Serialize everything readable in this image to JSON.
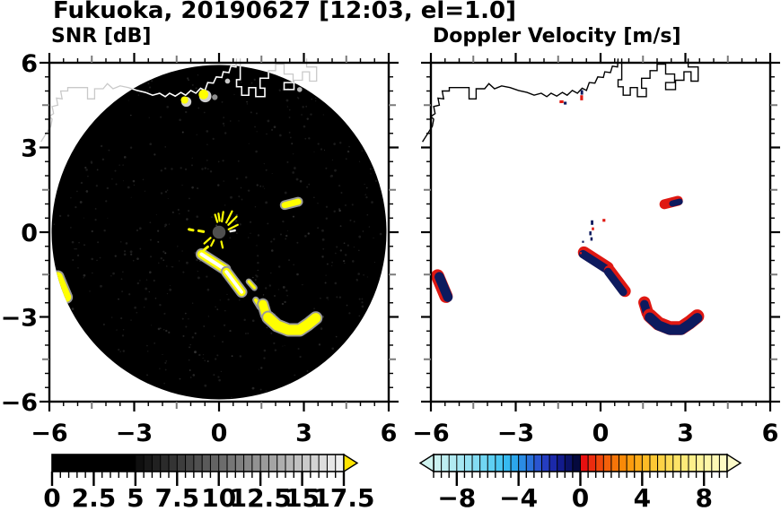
{
  "header": {
    "main_title": "Fukuoka, 20190627 [12:03, el=1.0]",
    "left_panel_title": "SNR [dB]",
    "right_panel_title": "Doppler Velocity [m/s]"
  },
  "colors": {
    "snr_echo": "#ffff00",
    "snr_halo": "#9a9a9a",
    "snr_core": "#ffffff",
    "vel_pos": "#df1812",
    "vel_neg": "#0d1a5e",
    "disk": "#000000",
    "coast_inside_disk": "#ffffff",
    "coast_outside_disk": "#c9c9c9",
    "coast_velocity_panel": "#000000",
    "center_dot": "#4f4f4f",
    "frame": "#000000",
    "medium_tick": "#7a7a7a",
    "snr_over_arrow": "#ffe400"
  },
  "chart_data": {
    "type": "heatmap",
    "title": "Fukuoka, 20190627 [12:03, el=1.0]",
    "panels": [
      {
        "name": "SNR [dB]",
        "kind": "snr",
        "xlim": [
          -6,
          6
        ],
        "ylim": [
          -6,
          6
        ],
        "xtick_values": [
          -6,
          -3,
          0,
          3,
          6
        ],
        "ytick_values": [
          -6,
          -3,
          0,
          3,
          6
        ],
        "xtick_labels": [
          "−6",
          "−3",
          "0",
          "3",
          "6"
        ],
        "ytick_labels": [
          "−6",
          "−3",
          "0",
          "3",
          "6"
        ],
        "minor_tick_step": 0.5,
        "medium_tick_step": 1.5,
        "disk_radius": 5.92,
        "colorbar": {
          "min": 0,
          "max": 17.5,
          "cell": 0.5,
          "black_until": 5,
          "major_values": [
            0,
            2.5,
            5,
            7.5,
            10,
            12.5,
            15,
            17.5
          ],
          "labels": [
            "0",
            "2.5",
            "5",
            "7.5",
            "10",
            "12.5",
            "15",
            "17.5"
          ],
          "arrow_left": false,
          "arrow_right": true
        }
      },
      {
        "name": "Doppler Velocity [m/s]",
        "kind": "vel",
        "xlim": [
          -6,
          6
        ],
        "ylim": [
          -6,
          6
        ],
        "xtick_values": [
          -6,
          -3,
          0,
          3,
          6
        ],
        "ytick_values": [
          -6,
          -3,
          0,
          3,
          6
        ],
        "xtick_labels": [
          "−6",
          "−3",
          "0",
          "3",
          "6"
        ],
        "ytick_labels": [],
        "minor_tick_step": 0.5,
        "medium_tick_step": 1.5,
        "colorbar": {
          "min": -9.5,
          "max": 9.5,
          "cell": 0.5,
          "major_values": [
            -8,
            -4,
            0,
            4,
            8
          ],
          "labels": [
            "−8",
            "−4",
            "0",
            "4",
            "8"
          ],
          "arrow_left": true,
          "arrow_right": true
        }
      }
    ],
    "snr_cmap": {
      "start": 5,
      "end": 17.5,
      "low_rgb": [
        10,
        10,
        10
      ],
      "high_rgb": [
        244,
        244,
        244
      ]
    },
    "vel_cmap": {
      "neg_stops": [
        [
          -9.5,
          [
            207,
            243,
            240
          ]
        ],
        [
          -7.5,
          [
            159,
            229,
            243
          ]
        ],
        [
          -5.5,
          [
            85,
            205,
            243
          ]
        ],
        [
          -4.5,
          [
            44,
            180,
            240
          ]
        ],
        [
          -3.5,
          [
            42,
            127,
            224
          ]
        ],
        [
          -2.5,
          [
            42,
            71,
            204
          ]
        ],
        [
          -1.5,
          [
            22,
            31,
            158
          ]
        ],
        [
          -0.5,
          [
            7,
            14,
            86
          ]
        ],
        [
          -0.25,
          [
            5,
            9,
            62
          ]
        ]
      ],
      "pos_stops": [
        [
          0.25,
          [
            232,
            16,
            16
          ]
        ],
        [
          1.5,
          [
            241,
            85,
            10
          ]
        ],
        [
          3,
          [
            250,
            148,
            8
          ]
        ],
        [
          4.5,
          [
            253,
            195,
            44
          ]
        ],
        [
          6,
          [
            253,
            224,
            94
          ]
        ],
        [
          7.5,
          [
            253,
            243,
            148
          ]
        ],
        [
          9.5,
          [
            253,
            251,
            201
          ]
        ]
      ]
    },
    "coastline": {
      "mainland": [
        [
          -6.3,
          3.2
        ],
        [
          -5.95,
          3.75
        ],
        [
          -5.9,
          4.0
        ],
        [
          -6.0,
          4.1
        ],
        [
          -5.85,
          4.2
        ],
        [
          -5.9,
          4.45
        ],
        [
          -5.7,
          4.5
        ],
        [
          -5.75,
          4.75
        ],
        [
          -5.55,
          4.72
        ],
        [
          -5.6,
          5.0
        ],
        [
          -5.35,
          5.0
        ],
        [
          -5.35,
          5.12
        ],
        [
          -4.65,
          5.12
        ],
        [
          -4.65,
          4.72
        ],
        [
          -4.4,
          4.72
        ],
        [
          -4.4,
          5.08
        ],
        [
          -4.1,
          5.08
        ],
        [
          -3.95,
          5.26
        ],
        [
          -3.75,
          5.08
        ],
        [
          -3.5,
          5.18
        ],
        [
          -3.2,
          5.12
        ],
        [
          -2.9,
          5.02
        ],
        [
          -2.6,
          4.95
        ],
        [
          -2.35,
          4.85
        ],
        [
          -2.1,
          4.92
        ],
        [
          -1.9,
          4.8
        ],
        [
          -1.75,
          4.92
        ],
        [
          -1.55,
          4.82
        ],
        [
          -1.35,
          4.95
        ],
        [
          -1.18,
          4.85
        ],
        [
          -1.0,
          5.02
        ],
        [
          -0.82,
          4.92
        ],
        [
          -0.65,
          5.1
        ],
        [
          -0.5,
          5.02
        ],
        [
          -0.4,
          5.3
        ],
        [
          -0.2,
          5.28
        ],
        [
          -0.1,
          5.5
        ],
        [
          0.1,
          5.48
        ],
        [
          0.15,
          5.68
        ],
        [
          0.35,
          5.65
        ],
        [
          0.42,
          5.88
        ],
        [
          0.6,
          5.85
        ],
        [
          0.62,
          6.15
        ]
      ],
      "harbor": [
        [
          0.75,
          6.15
        ],
        [
          0.75,
          5.4
        ],
        [
          0.62,
          5.4
        ],
        [
          0.62,
          5.15
        ],
        [
          0.8,
          5.15
        ],
        [
          0.8,
          4.85
        ],
        [
          1.05,
          4.85
        ],
        [
          1.05,
          5.12
        ],
        [
          1.3,
          5.12
        ],
        [
          1.3,
          4.8
        ],
        [
          1.62,
          4.8
        ],
        [
          1.62,
          5.1
        ],
        [
          1.45,
          5.1
        ],
        [
          1.45,
          5.45
        ],
        [
          1.75,
          5.45
        ],
        [
          1.75,
          5.72
        ],
        [
          2.0,
          5.72
        ],
        [
          2.0,
          5.95
        ],
        [
          2.3,
          5.95
        ],
        [
          2.3,
          5.6
        ],
        [
          2.62,
          5.6
        ],
        [
          2.62,
          5.3
        ],
        [
          2.3,
          5.3
        ],
        [
          2.3,
          5.05
        ],
        [
          2.65,
          5.05
        ],
        [
          2.65,
          5.38
        ],
        [
          2.95,
          5.38
        ],
        [
          2.95,
          5.68
        ],
        [
          3.2,
          5.68
        ],
        [
          3.2,
          5.35
        ],
        [
          3.45,
          5.35
        ],
        [
          3.45,
          5.85
        ],
        [
          3.1,
          5.85
        ],
        [
          3.1,
          6.15
        ]
      ]
    },
    "echoes": {
      "bands": [
        {
          "id": "arc-seg-1",
          "pts": [
            [
              -0.62,
              -0.78
            ],
            [
              0.22,
              -1.32
            ]
          ],
          "w": 0.3,
          "white_core": true,
          "vel_offset": [
            1,
            -2
          ]
        },
        {
          "id": "arc-seg-2",
          "pts": [
            [
              0.26,
              -1.4
            ],
            [
              0.8,
              -2.12
            ]
          ],
          "w": 0.28,
          "white_core": true,
          "vel_offset": [
            2,
            -1
          ]
        },
        {
          "id": "arc-dash-1",
          "pts": [
            [
              1.05,
              -1.75
            ],
            [
              1.25,
              -1.97
            ]
          ],
          "w": 0.1,
          "snr_only": true
        },
        {
          "id": "arc-dash-2",
          "pts": [
            [
              1.3,
              -2.4
            ],
            [
              1.45,
              -2.65
            ]
          ],
          "w": 0.12,
          "snr_only": true
        },
        {
          "id": "arc-hook",
          "pts": [
            [
              1.55,
              -2.55
            ],
            [
              1.66,
              -2.92
            ]
          ],
          "w": 0.3,
          "vel_offset": [
            0,
            -2
          ]
        },
        {
          "id": "arc-bottom",
          "pts": [
            [
              1.74,
              -3.02
            ],
            [
              2.05,
              -3.3
            ],
            [
              2.45,
              -3.46
            ],
            [
              2.85,
              -3.46
            ],
            [
              3.15,
              -3.26
            ],
            [
              3.42,
              -3.04
            ]
          ],
          "w": 0.36,
          "vel_offset": [
            0,
            -2
          ]
        },
        {
          "id": "west-edge-band",
          "pts": [
            [
              -5.7,
              -1.58
            ],
            [
              -5.4,
              -2.3
            ]
          ],
          "w": 0.34,
          "vel_offset": [
            -2,
            -1
          ]
        },
        {
          "id": "mid-blob",
          "pts": [
            [
              2.32,
              0.96
            ],
            [
              2.8,
              1.08
            ]
          ],
          "w": 0.22,
          "white_core": false,
          "vel_offset": [
            -2,
            -1
          ],
          "vel_red_first_half": true
        }
      ],
      "snr_coast_dots": [
        {
          "x": -1.22,
          "y": 4.68,
          "r": 0.13,
          "color": "#ffff00",
          "halo": true
        },
        {
          "x": -0.55,
          "y": 4.88,
          "r": 0.17,
          "color": "#ffff00",
          "halo": true
        },
        {
          "x": -0.15,
          "y": 4.78,
          "r": 0.1,
          "color": "#8f8f8f"
        },
        {
          "x": 0.3,
          "y": 5.35,
          "r": 0.09,
          "color": "#c8c8c8"
        },
        {
          "x": 2.85,
          "y": 5.05,
          "r": 0.09,
          "color": "#b5b5b5"
        }
      ],
      "vel_coast_marks": [
        {
          "x": -1.38,
          "y": 4.62,
          "w": 0.14,
          "h": 0.1,
          "c": "pos"
        },
        {
          "x": -1.25,
          "y": 4.57,
          "w": 0.1,
          "h": 0.1,
          "c": "neg"
        },
        {
          "x": -0.66,
          "y": 4.95,
          "w": 0.09,
          "h": 0.16,
          "c": "neg"
        },
        {
          "x": -0.67,
          "y": 4.76,
          "w": 0.1,
          "h": 0.18,
          "c": "pos"
        }
      ],
      "vel_center_specks": [
        {
          "x": -0.3,
          "y": 0.34,
          "w": 0.09,
          "h": 0.16,
          "c": "neg"
        },
        {
          "x": -0.27,
          "y": 0.12,
          "w": 0.08,
          "h": 0.1,
          "c": "pos"
        },
        {
          "x": 0.12,
          "y": 0.42,
          "w": 0.1,
          "h": 0.1,
          "c": "pos"
        },
        {
          "x": -0.36,
          "y": -0.04,
          "w": 0.08,
          "h": 0.14,
          "c": "neg"
        },
        {
          "x": -0.32,
          "y": -0.24,
          "w": 0.08,
          "h": 0.12,
          "c": "neg"
        },
        {
          "x": -0.62,
          "y": -0.34,
          "w": 0.07,
          "h": 0.07,
          "c": "neg"
        },
        {
          "x": -0.7,
          "y": -0.74,
          "w": 0.07,
          "h": 0.07,
          "c": "pos"
        }
      ],
      "radar_center": {
        "x": 0,
        "y": 0,
        "r": 0.23
      },
      "center_spikes": [
        [
          0.26,
          0.34,
          0.46,
          0.74
        ],
        [
          0.33,
          0.26,
          0.62,
          0.55
        ],
        [
          0.34,
          0.1,
          0.66,
          0.26
        ],
        [
          0.1,
          0.38,
          0.15,
          0.72
        ],
        [
          -0.06,
          0.36,
          -0.14,
          0.62
        ],
        [
          0.02,
          0.4,
          -0.02,
          0.66
        ],
        [
          -0.3,
          -0.2,
          -0.52,
          -0.4
        ],
        [
          0.08,
          -0.33,
          0.13,
          -0.55
        ],
        [
          -0.18,
          -0.28,
          -0.28,
          -0.48
        ]
      ],
      "center_dashes_yellow": [
        [
          -0.55,
          0.02,
          -0.72,
          0.05
        ],
        [
          -0.92,
          0.07,
          -1.06,
          0.1
        ],
        [
          -0.4,
          -0.52,
          -0.52,
          -0.62
        ]
      ],
      "center_dashes_white": [
        [
          0.4,
          0.03,
          0.56,
          0.06
        ]
      ]
    }
  }
}
